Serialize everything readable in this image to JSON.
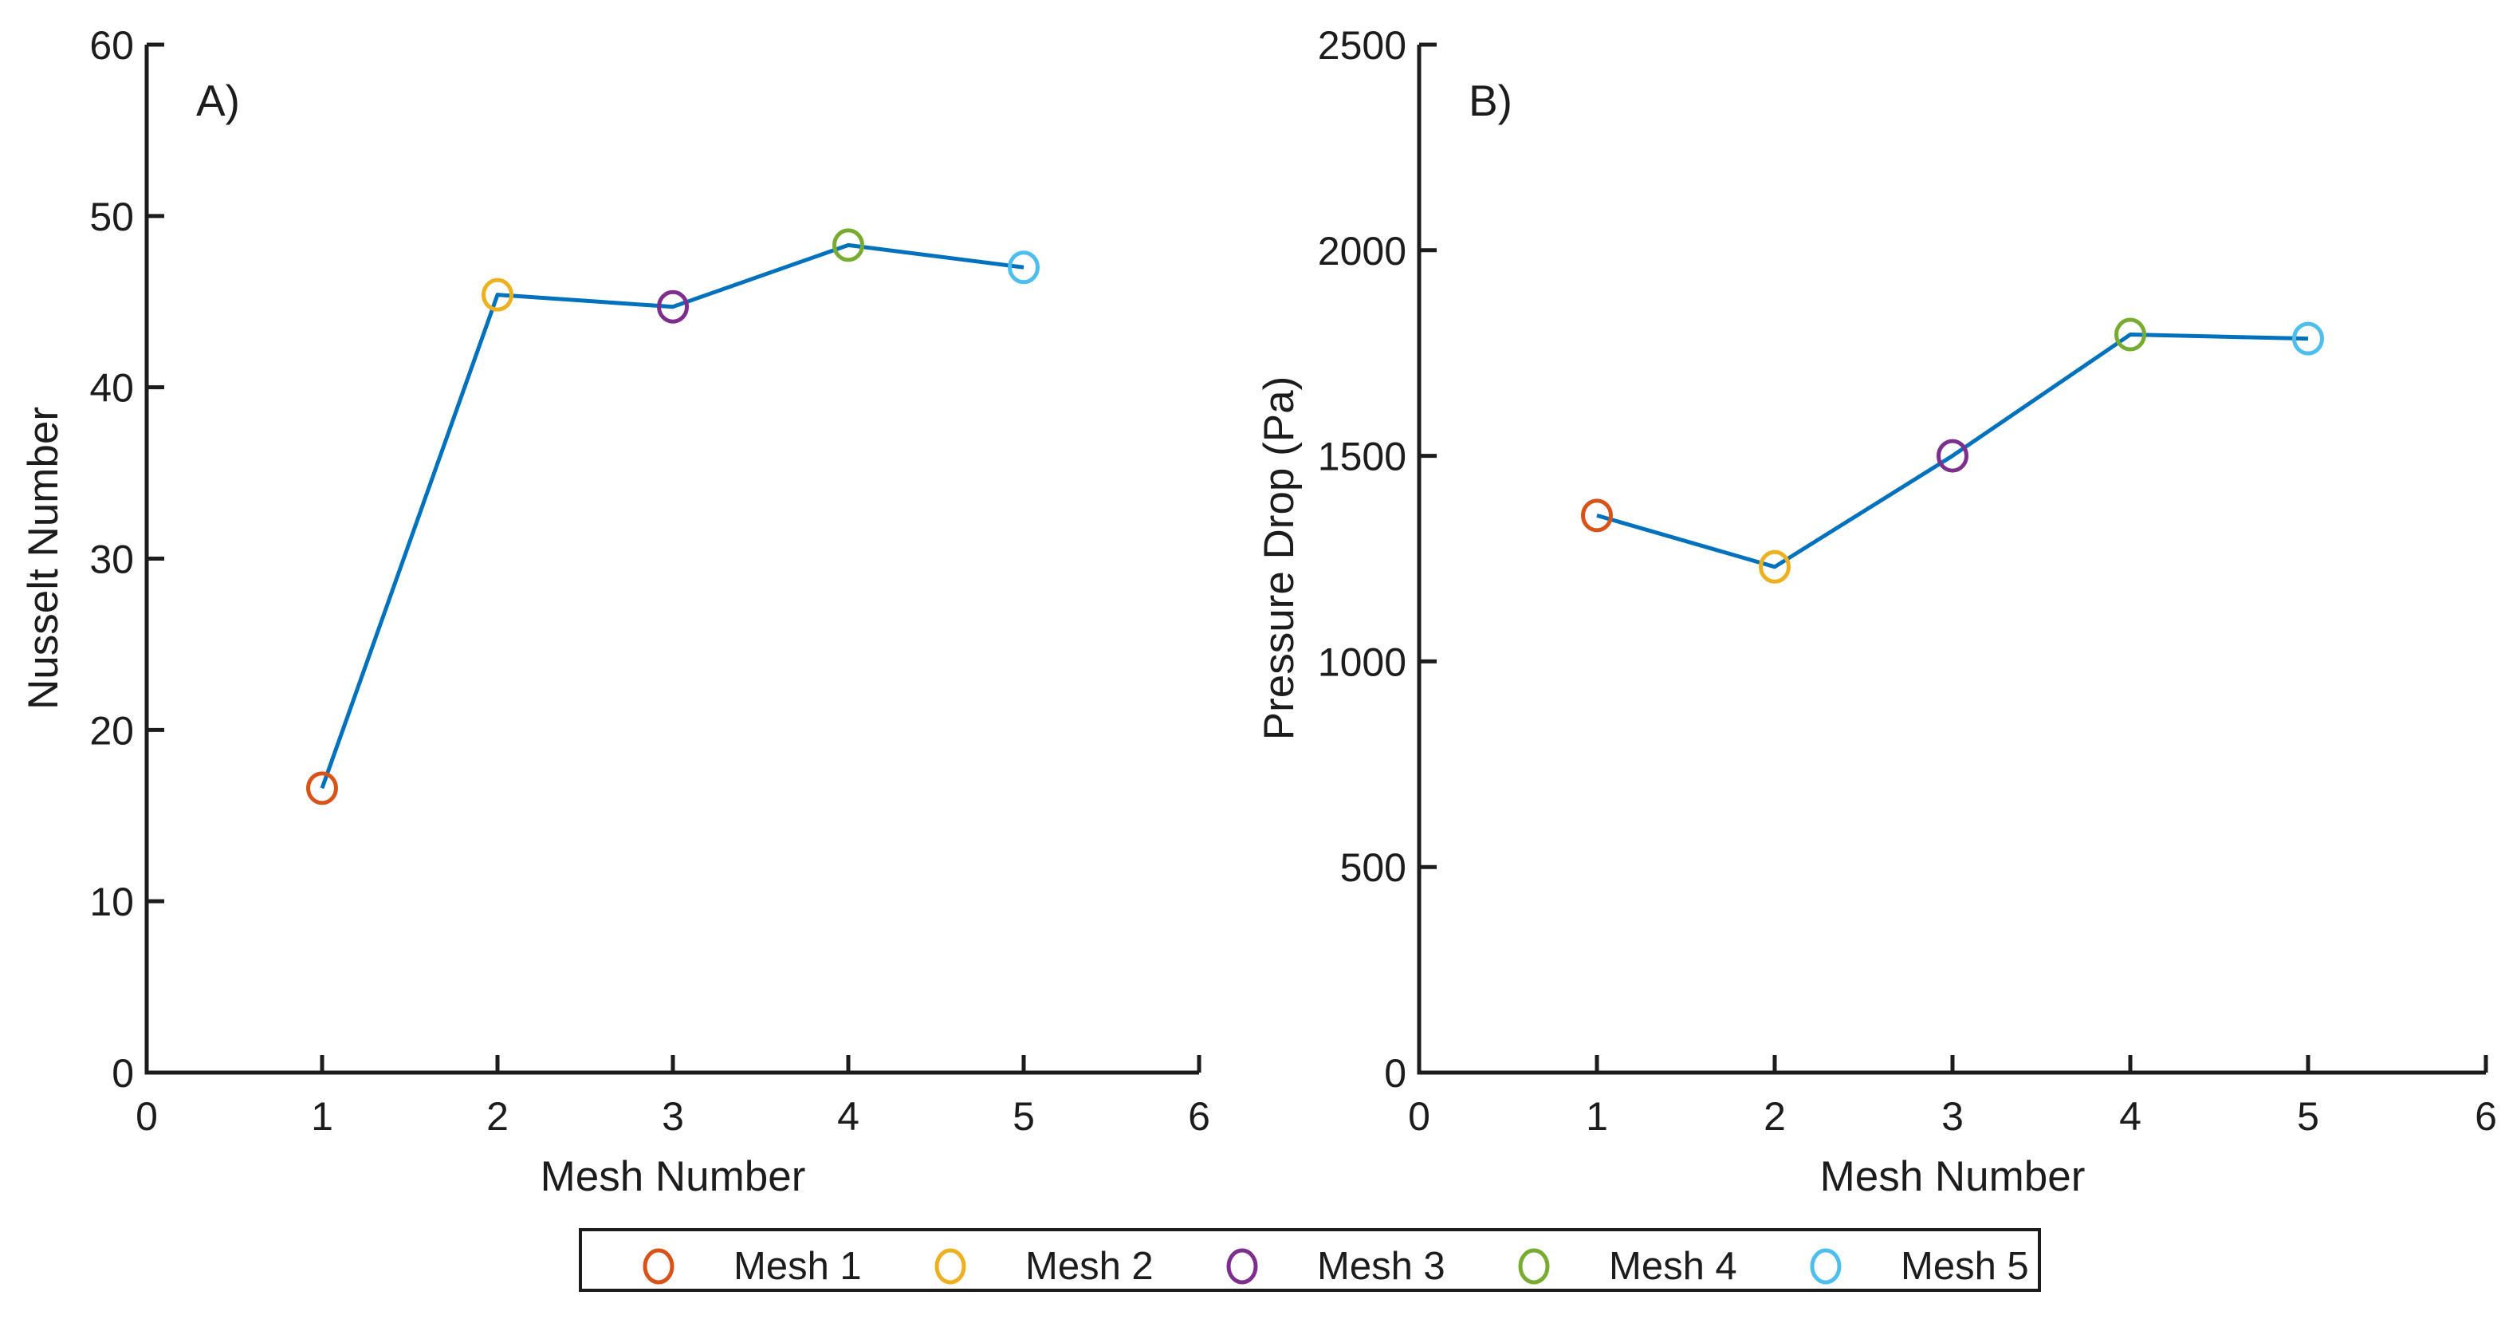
{
  "chart_data": [
    {
      "type": "line",
      "panel_label": "A)",
      "xlabel": "Mesh Number",
      "ylabel": "Nusselt Number",
      "x": [
        1,
        2,
        3,
        4,
        5
      ],
      "y": [
        16.6,
        45.4,
        44.7,
        48.3,
        47.0
      ],
      "xlim": [
        0,
        6
      ],
      "ylim": [
        0,
        60
      ],
      "xticks": [
        "0",
        "1",
        "2",
        "3",
        "4",
        "5",
        "6"
      ],
      "yticks": [
        "0",
        "10",
        "20",
        "30",
        "40",
        "50",
        "60"
      ],
      "grid": false,
      "line_color": "#0072BD",
      "marker_colors": [
        "#D95319",
        "#EDB120",
        "#7E2F8E",
        "#77AC30",
        "#4DBEEE"
      ],
      "point_labels": [
        "Mesh 1",
        "Mesh 2",
        "Mesh 3",
        "Mesh 4",
        "Mesh 5"
      ]
    },
    {
      "type": "line",
      "panel_label": "B)",
      "xlabel": "Mesh Number",
      "ylabel": "Pressure Drop (Pa)",
      "x": [
        1,
        2,
        3,
        4,
        5
      ],
      "y": [
        1355,
        1230,
        1500,
        1795,
        1785
      ],
      "xlim": [
        0,
        6
      ],
      "ylim": [
        0,
        2500
      ],
      "xticks": [
        "0",
        "1",
        "2",
        "3",
        "4",
        "5",
        "6"
      ],
      "yticks": [
        "0",
        "500",
        "1000",
        "1500",
        "2000",
        "2500"
      ],
      "grid": false,
      "line_color": "#0072BD",
      "marker_colors": [
        "#D95319",
        "#EDB120",
        "#7E2F8E",
        "#77AC30",
        "#4DBEEE"
      ],
      "point_labels": [
        "Mesh 1",
        "Mesh 2",
        "Mesh 3",
        "Mesh 4",
        "Mesh 5"
      ]
    }
  ],
  "legend": {
    "position": "bottom-outside",
    "items": [
      {
        "label": "Mesh 1",
        "color": "#D95319"
      },
      {
        "label": "Mesh 2",
        "color": "#EDB120"
      },
      {
        "label": "Mesh 3",
        "color": "#7E2F8E"
      },
      {
        "label": "Mesh 4",
        "color": "#77AC30"
      },
      {
        "label": "Mesh 5",
        "color": "#4DBEEE"
      }
    ]
  }
}
